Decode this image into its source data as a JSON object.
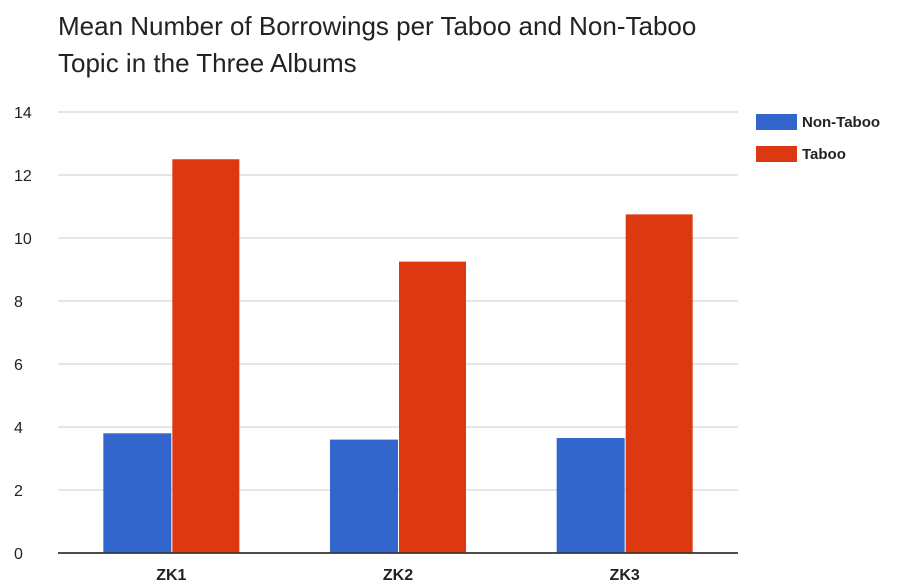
{
  "chart_data": {
    "type": "bar",
    "title": "Mean Number of Borrowings per Taboo and Non-Taboo Topic in the Three Albums",
    "xlabel": "",
    "ylabel": "",
    "categories": [
      "ZK1",
      "ZK2",
      "ZK3"
    ],
    "series": [
      {
        "name": "Non-Taboo",
        "color": "#3366cc",
        "values": [
          3.8,
          3.6,
          3.65
        ]
      },
      {
        "name": "Taboo",
        "color": "#dc3912",
        "values": [
          12.5,
          9.25,
          10.75
        ]
      }
    ],
    "ylim": [
      0,
      14
    ],
    "yticks": [
      0,
      2,
      4,
      6,
      8,
      10,
      12,
      14
    ],
    "grid": true,
    "legend_position": "right"
  }
}
